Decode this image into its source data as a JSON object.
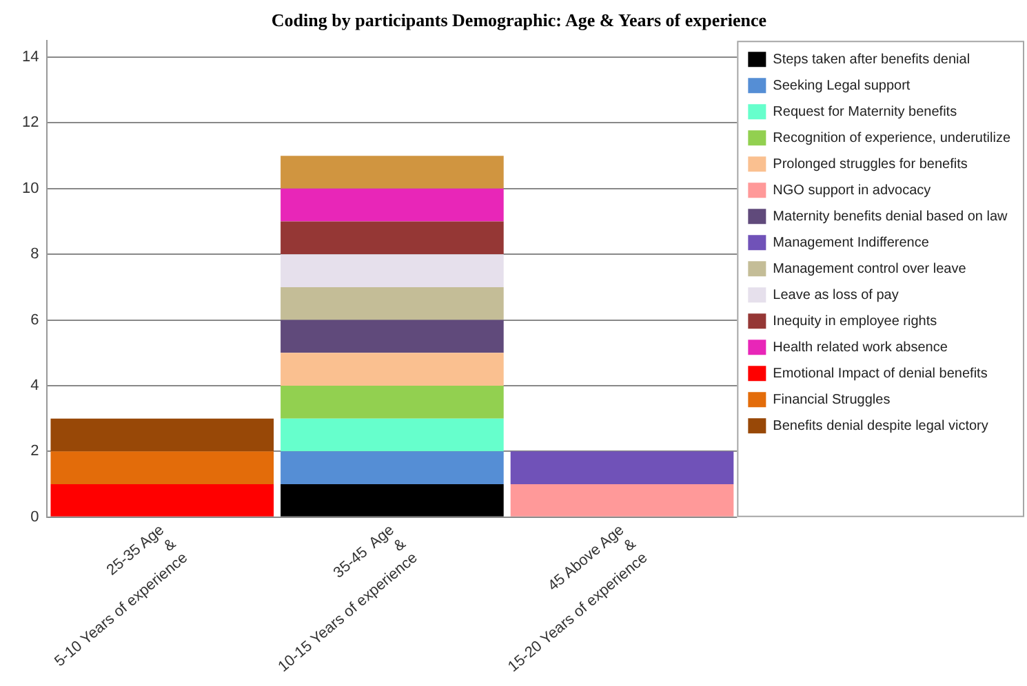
{
  "chart_data": {
    "type": "bar",
    "title": "Coding by participants Demographic: Age & Years of experience",
    "stacked": true,
    "categories": [
      "25-35 Age\n&\n5-10 Years of experience",
      "35-45  Age\n&\n10-15 Years of experience",
      "45 Above Age\n&\n15-20 Years of experience"
    ],
    "ylim": [
      0,
      14.5
    ],
    "yticks": [
      0,
      2,
      4,
      6,
      8,
      10,
      12,
      14
    ],
    "grid": "y",
    "legend": "right",
    "series": [
      {
        "name": "Steps taken after benefits denial",
        "color": "#000000",
        "values": [
          null,
          1,
          null
        ]
      },
      {
        "name": "Seeking Legal support",
        "color": "#558ed5",
        "values": [
          null,
          1,
          null
        ]
      },
      {
        "name": "Request for Maternity benefits",
        "color": "#66ffcc",
        "values": [
          null,
          1,
          null
        ]
      },
      {
        "name": "Recognition of experience, underutilize",
        "color": "#92d050",
        "values": [
          null,
          1,
          null
        ]
      },
      {
        "name": "Prolonged struggles for benefits",
        "color": "#fac090",
        "values": [
          null,
          1,
          null
        ]
      },
      {
        "name": "NGO support in advocacy",
        "color": "#ff9999",
        "values": [
          null,
          null,
          1
        ]
      },
      {
        "name": "Maternity benefits denial based on law",
        "color": "#604a7b",
        "values": [
          null,
          1,
          null
        ]
      },
      {
        "name": "Management Indifference",
        "color": "#7052b8",
        "values": [
          null,
          null,
          1
        ]
      },
      {
        "name": "Management control over leave",
        "color": "#c4bd97",
        "values": [
          null,
          1,
          null
        ]
      },
      {
        "name": "Leave as loss of pay",
        "color": "#e6e0ec",
        "values": [
          null,
          1,
          null
        ]
      },
      {
        "name": "Inequity in employee rights",
        "color": "#953735",
        "values": [
          null,
          1,
          null
        ]
      },
      {
        "name": "Health related work absence",
        "color": "#e826b8",
        "values": [
          null,
          1,
          null
        ]
      },
      {
        "color": "#d09540",
        "values": [
          null,
          1,
          null
        ]
      },
      {
        "name": "Emotional Impact of denial benefits",
        "color": "#ff0000",
        "values": [
          1,
          null,
          null
        ]
      },
      {
        "name": "Financial Struggles",
        "color": "#e36c0a",
        "values": [
          1,
          null,
          null
        ]
      },
      {
        "name": "Benefits denial despite legal victory",
        "color": "#984807",
        "values": [
          1,
          null,
          null
        ]
      }
    ]
  }
}
